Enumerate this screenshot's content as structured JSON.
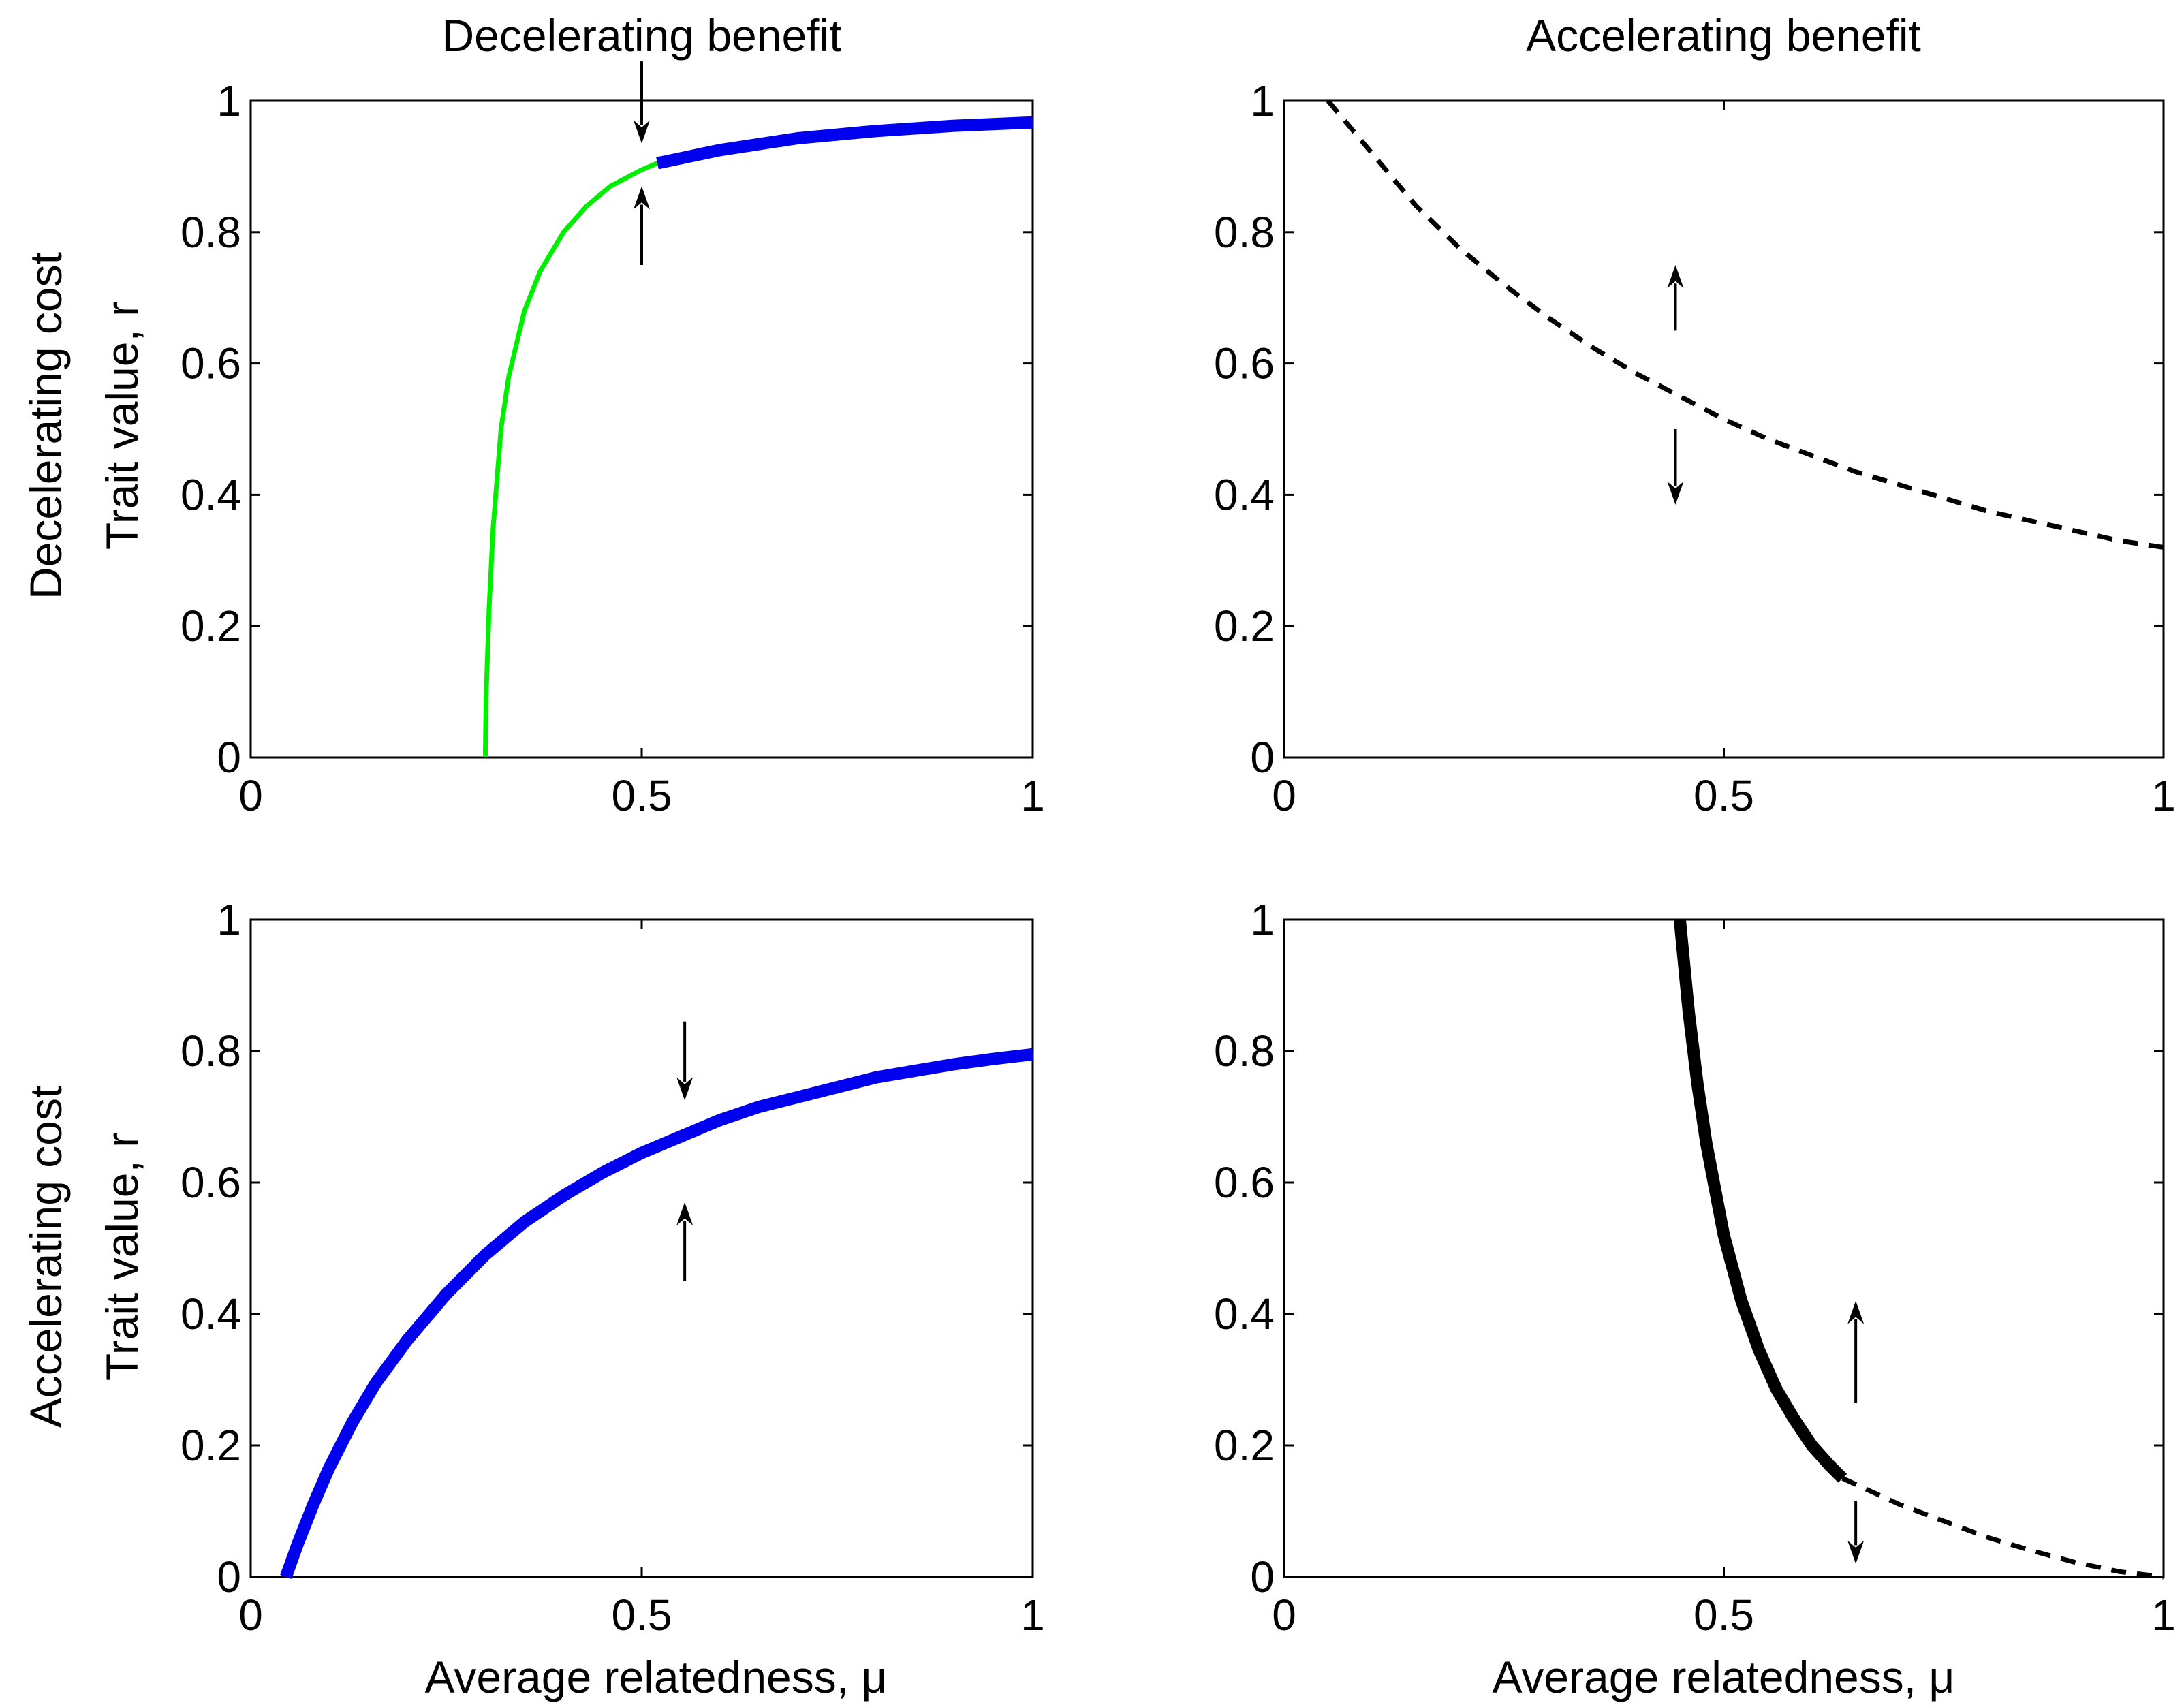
{
  "columns": [
    "Decelerating benefit",
    "Accelerating benefit"
  ],
  "rows": [
    "Decelerating cost",
    "Accelerating cost"
  ],
  "ylabel": "Trait value, r",
  "xlabel": "Average relatedness, μ",
  "chart_data": [
    {
      "type": "line",
      "row": 0,
      "col": 0,
      "title": "Decelerating benefit",
      "xlabel": "",
      "ylabel": "Trait value, r",
      "xlim": [
        0,
        1
      ],
      "ylim": [
        0,
        1
      ],
      "xticks": [
        0,
        0.5,
        1
      ],
      "xtick_labels": [
        "0",
        "0.5",
        "1"
      ],
      "yticks": [
        0,
        0.2,
        0.4,
        0.6,
        0.8,
        1
      ],
      "ytick_labels": [
        "0",
        "0.2",
        "0.4",
        "0.6",
        "0.8",
        "1"
      ],
      "grid": false,
      "series": [
        {
          "style": "thin-solid",
          "color": "#00ee00",
          "x": [
            0.3,
            0.301,
            0.305,
            0.31,
            0.32,
            0.33,
            0.35,
            0.37,
            0.4,
            0.43,
            0.46,
            0.5,
            0.52
          ],
          "y": [
            0.0,
            0.09,
            0.23,
            0.35,
            0.5,
            0.58,
            0.68,
            0.74,
            0.8,
            0.84,
            0.87,
            0.895,
            0.905
          ]
        },
        {
          "style": "thick-solid",
          "color": "#0000ee",
          "x": [
            0.52,
            0.6,
            0.7,
            0.8,
            0.9,
            1.0
          ],
          "y": [
            0.905,
            0.925,
            0.943,
            0.954,
            0.962,
            0.967
          ]
        }
      ],
      "arrows": [
        {
          "x": 0.5,
          "from": 1.06,
          "to": 0.935
        },
        {
          "x": 0.5,
          "from": 0.75,
          "to": 0.87
        }
      ]
    },
    {
      "type": "line",
      "row": 0,
      "col": 1,
      "title": "Accelerating benefit",
      "xlabel": "",
      "ylabel": "",
      "xlim": [
        0,
        1
      ],
      "ylim": [
        0,
        1
      ],
      "xticks": [
        0,
        0.5,
        1
      ],
      "xtick_labels": [
        "0",
        "0.5",
        "1"
      ],
      "yticks": [
        0,
        0.2,
        0.4,
        0.6,
        0.8,
        1
      ],
      "ytick_labels": [
        "0",
        "0.2",
        "0.4",
        "0.6",
        "0.8",
        "1"
      ],
      "grid": false,
      "series": [
        {
          "style": "dashed",
          "color": "#000000",
          "x": [
            0.05,
            0.1,
            0.15,
            0.2,
            0.25,
            0.3,
            0.35,
            0.4,
            0.45,
            0.5,
            0.55,
            0.6,
            0.65,
            0.7,
            0.75,
            0.8,
            0.85,
            0.9,
            0.95,
            1.0
          ],
          "y": [
            1.0,
            0.92,
            0.84,
            0.775,
            0.72,
            0.67,
            0.625,
            0.585,
            0.55,
            0.515,
            0.485,
            0.46,
            0.435,
            0.415,
            0.395,
            0.375,
            0.36,
            0.345,
            0.33,
            0.32
          ]
        }
      ],
      "arrows": [
        {
          "x": 0.445,
          "from": 0.65,
          "to": 0.75
        },
        {
          "x": 0.445,
          "from": 0.5,
          "to": 0.385
        }
      ]
    },
    {
      "type": "line",
      "row": 1,
      "col": 0,
      "title": "",
      "xlabel": "Average relatedness, μ",
      "ylabel": "Trait value, r",
      "xlim": [
        0,
        1
      ],
      "ylim": [
        0,
        1
      ],
      "xticks": [
        0,
        0.5,
        1
      ],
      "xtick_labels": [
        "0",
        "0.5",
        "1"
      ],
      "yticks": [
        0,
        0.2,
        0.4,
        0.6,
        0.8,
        1
      ],
      "ytick_labels": [
        "0",
        "0.2",
        "0.4",
        "0.6",
        "0.8",
        "1"
      ],
      "grid": false,
      "series": [
        {
          "style": "thick-solid",
          "color": "#0000ee",
          "x": [
            0.045,
            0.06,
            0.08,
            0.1,
            0.13,
            0.16,
            0.2,
            0.25,
            0.3,
            0.35,
            0.4,
            0.45,
            0.5,
            0.55,
            0.6,
            0.65,
            0.7,
            0.75,
            0.8,
            0.85,
            0.9,
            0.95,
            1.0
          ],
          "y": [
            0.0,
            0.05,
            0.11,
            0.165,
            0.235,
            0.295,
            0.36,
            0.43,
            0.49,
            0.54,
            0.58,
            0.615,
            0.645,
            0.67,
            0.695,
            0.715,
            0.73,
            0.745,
            0.76,
            0.77,
            0.78,
            0.788,
            0.795
          ]
        }
      ],
      "arrows": [
        {
          "x": 0.555,
          "from": 0.845,
          "to": 0.725
        },
        {
          "x": 0.555,
          "from": 0.45,
          "to": 0.57
        }
      ]
    },
    {
      "type": "line",
      "row": 1,
      "col": 1,
      "title": "",
      "xlabel": "Average relatedness, μ",
      "ylabel": "",
      "xlim": [
        0,
        1
      ],
      "ylim": [
        0,
        1
      ],
      "xticks": [
        0,
        0.5,
        1
      ],
      "xtick_labels": [
        "0",
        "0.5",
        "1"
      ],
      "yticks": [
        0,
        0.2,
        0.4,
        0.6,
        0.8,
        1
      ],
      "ytick_labels": [
        "0",
        "0.2",
        "0.4",
        "0.6",
        "0.8",
        "1"
      ],
      "grid": false,
      "series": [
        {
          "style": "thick-solid",
          "color": "#000000",
          "x": [
            0.45,
            0.46,
            0.47,
            0.48,
            0.5,
            0.52,
            0.54,
            0.56,
            0.58,
            0.6,
            0.62,
            0.635
          ],
          "y": [
            1.0,
            0.86,
            0.75,
            0.66,
            0.52,
            0.42,
            0.345,
            0.285,
            0.24,
            0.2,
            0.17,
            0.15
          ]
        },
        {
          "style": "dashed",
          "color": "#000000",
          "x": [
            0.635,
            0.7,
            0.75,
            0.8,
            0.85,
            0.9,
            0.95,
            1.0
          ],
          "y": [
            0.15,
            0.11,
            0.085,
            0.06,
            0.04,
            0.022,
            0.008,
            0.0
          ]
        }
      ],
      "arrows": [
        {
          "x": 0.65,
          "from": 0.265,
          "to": 0.42
        },
        {
          "x": 0.65,
          "from": 0.115,
          "to": 0.02
        }
      ]
    }
  ]
}
